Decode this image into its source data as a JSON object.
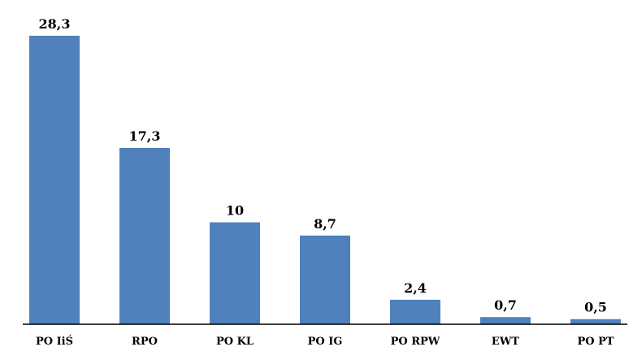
{
  "chart_data": {
    "type": "bar",
    "categories": [
      "PO IiŚ",
      "RPO",
      "PO KL",
      "PO IG",
      "PO RPW",
      "EWT",
      "PO PT"
    ],
    "values": [
      28.3,
      17.3,
      10,
      8.7,
      2.4,
      0.7,
      0.5
    ],
    "data_labels": [
      "28,3",
      "17,3",
      "10",
      "8,7",
      "2,4",
      "0,7",
      "0,5"
    ],
    "ylim": [
      0,
      28.3
    ],
    "grid": false,
    "legend": "none",
    "bar_color": "#4f81bd"
  }
}
